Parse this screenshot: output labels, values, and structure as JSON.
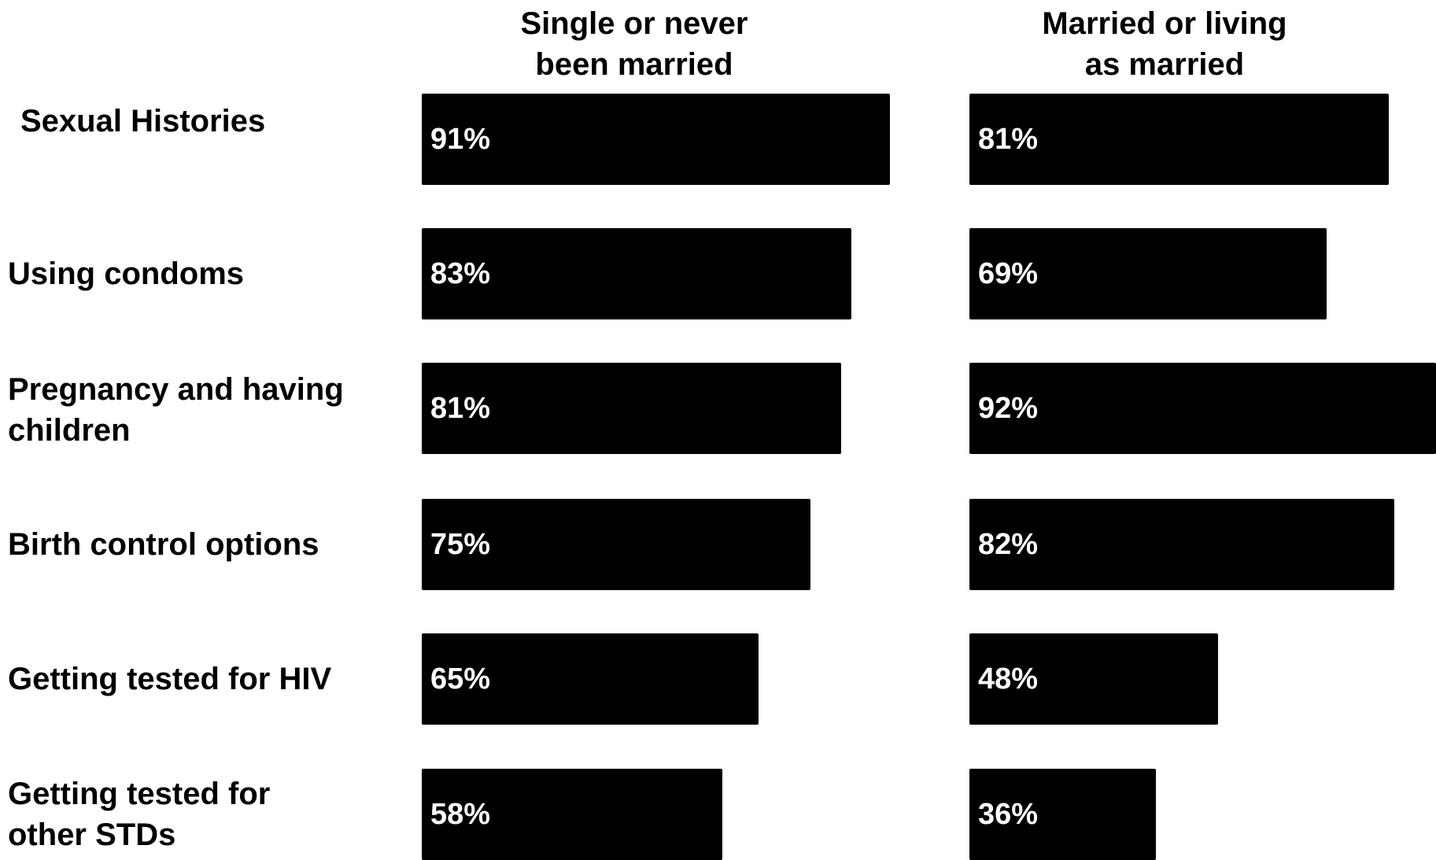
{
  "chart_data": {
    "type": "bar",
    "orientation": "horizontal",
    "categories": [
      "Sexual Histories",
      "Using condoms",
      "Pregnancy and having children",
      "Birth control options",
      "Getting tested for HIV",
      "Getting tested for other STDs"
    ],
    "category_labels": [
      "Sexual Histories",
      "Using condoms",
      "Pregnancy and having\nchildren",
      "Birth control options",
      "Getting tested for HIV",
      "Getting tested for\nother STDs"
    ],
    "series": [
      {
        "name": "Single or never been married",
        "title_lines": [
          "Single or never",
          "been married"
        ],
        "values": [
          91,
          83,
          81,
          75,
          65,
          58
        ],
        "labels": [
          "91%",
          "83%",
          "81%",
          "75%",
          "65%",
          "58%"
        ]
      },
      {
        "name": "Married or living as married",
        "title_lines": [
          "Married or living",
          "as married"
        ],
        "values": [
          81,
          69,
          92,
          82,
          48,
          36
        ],
        "labels": [
          "81%",
          "69%",
          "92%",
          "82%",
          "48%",
          "36%"
        ]
      }
    ],
    "value_unit": "%",
    "colors": {
      "bar": "#000000",
      "bar_label": "#ffffff",
      "text": "#000000"
    }
  }
}
